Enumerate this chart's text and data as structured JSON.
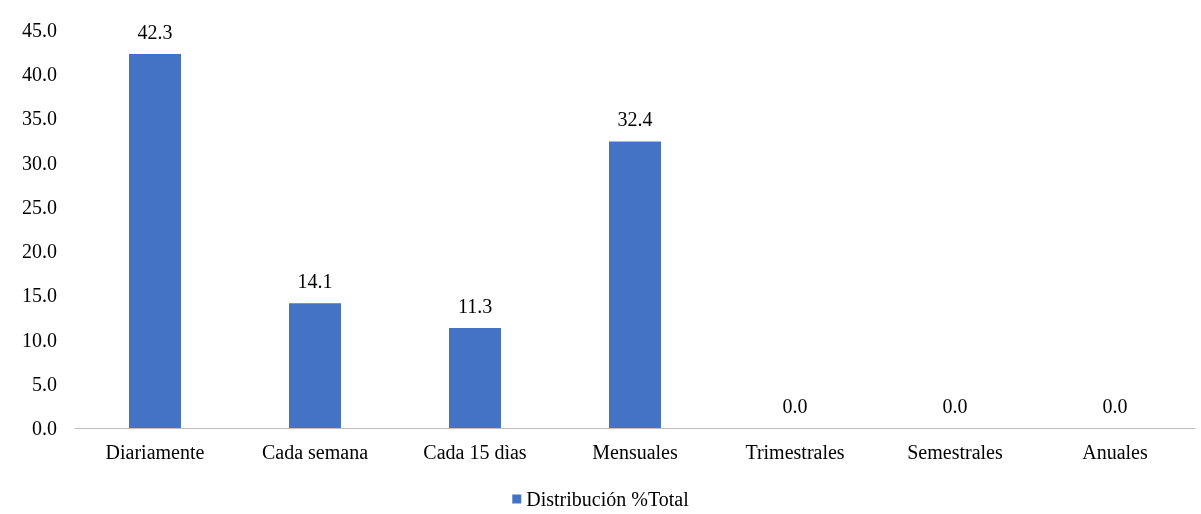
{
  "chart_data": {
    "type": "bar",
    "categories": [
      "Diariamente",
      "Cada semana",
      "Cada 15 dìas",
      "Mensuales",
      "Trimestrales",
      "Semestrales",
      "Anuales"
    ],
    "series": [
      {
        "name": "Distribución %Total",
        "color": "#4472c4",
        "values": [
          42.3,
          14.1,
          11.3,
          32.4,
          0,
          0,
          0
        ],
        "value_labels": [
          "42.3",
          "14.1",
          "11.3",
          "32.4",
          "0.0",
          "0.0",
          "0.0"
        ]
      }
    ],
    "ylim": [
      0,
      45
    ],
    "yticks": [
      {
        "value": 0,
        "label": "0.0"
      },
      {
        "value": 5,
        "label": "5.0"
      },
      {
        "value": 10,
        "label": "10.0"
      },
      {
        "value": 15,
        "label": "15.0"
      },
      {
        "value": 20,
        "label": "20.0"
      },
      {
        "value": 25,
        "label": "25.0"
      },
      {
        "value": 30,
        "label": "30.0"
      },
      {
        "value": 35,
        "label": "35.0"
      },
      {
        "value": 40,
        "label": "40.0"
      },
      {
        "value": 45,
        "label": "45.0"
      }
    ],
    "grid": false,
    "legend": "bottom"
  }
}
